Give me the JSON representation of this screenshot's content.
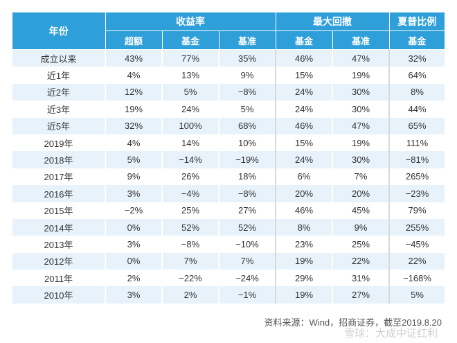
{
  "table": {
    "header": {
      "year": "年份",
      "groups": [
        "收益率",
        "最大回撤",
        "夏普比例"
      ],
      "sub": [
        "超额",
        "基金",
        "基准",
        "基金",
        "基准",
        "基金"
      ]
    },
    "rows": [
      [
        "成立以来",
        "43%",
        "77%",
        "35%",
        "46%",
        "47%",
        "32%"
      ],
      [
        "近1年",
        "4%",
        "13%",
        "9%",
        "15%",
        "19%",
        "64%"
      ],
      [
        "近2年",
        "12%",
        "5%",
        "−8%",
        "24%",
        "30%",
        "8%"
      ],
      [
        "近3年",
        "19%",
        "24%",
        "5%",
        "24%",
        "30%",
        "44%"
      ],
      [
        "近5年",
        "32%",
        "100%",
        "68%",
        "46%",
        "47%",
        "65%"
      ],
      [
        "2019年",
        "4%",
        "14%",
        "10%",
        "15%",
        "19%",
        "111%"
      ],
      [
        "2018年",
        "5%",
        "−14%",
        "−19%",
        "24%",
        "30%",
        "−81%"
      ],
      [
        "2017年",
        "9%",
        "26%",
        "18%",
        "6%",
        "7%",
        "265%"
      ],
      [
        "2016年",
        "3%",
        "−4%",
        "−8%",
        "20%",
        "20%",
        "−23%"
      ],
      [
        "2015年",
        "−2%",
        "25%",
        "27%",
        "46%",
        "45%",
        "79%"
      ],
      [
        "2014年",
        "0%",
        "52%",
        "52%",
        "8%",
        "9%",
        "255%"
      ],
      [
        "2013年",
        "3%",
        "−8%",
        "−10%",
        "23%",
        "25%",
        "−45%"
      ],
      [
        "2012年",
        "0%",
        "7%",
        "7%",
        "19%",
        "22%",
        "22%"
      ],
      [
        "2011年",
        "2%",
        "−22%",
        "−24%",
        "29%",
        "31%",
        "−168%"
      ],
      [
        "2010年",
        "3%",
        "2%",
        "−1%",
        "19%",
        "27%",
        "5%"
      ]
    ]
  },
  "footer": {
    "source": "资料来源：Wind，招商证券，截至2019.8.20"
  },
  "watermark": "雪球：大成中证红利",
  "colors": {
    "header_bg": "#2f9fd9",
    "row_alt_bg": "#e7f2fb"
  }
}
